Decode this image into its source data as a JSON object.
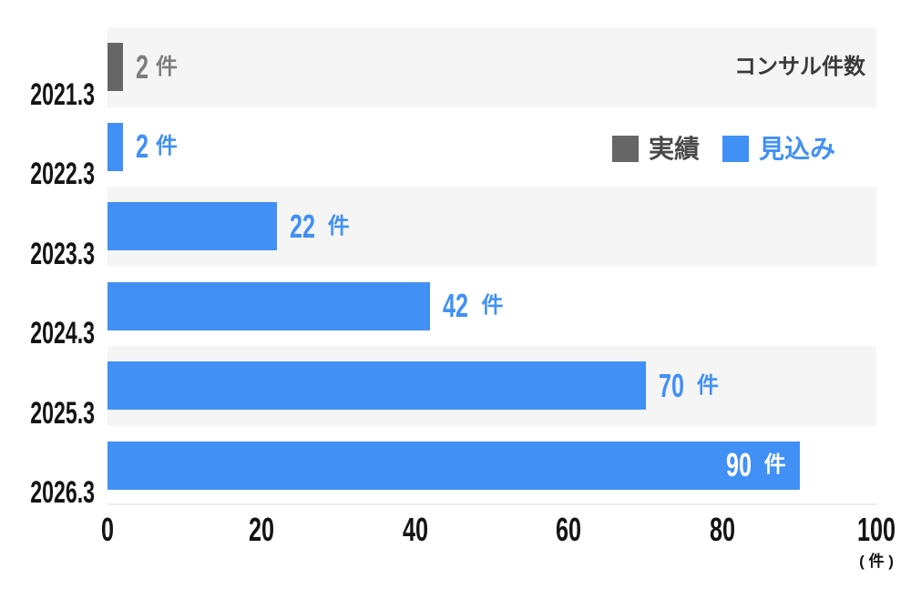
{
  "chart_data": {
    "type": "bar",
    "orientation": "horizontal",
    "title": "コンサル件数",
    "categories": [
      "2021.3",
      "2022.3",
      "2023.3",
      "2024.3",
      "2025.3",
      "2026.3"
    ],
    "rows": [
      {
        "category": "2021.3",
        "value": 2,
        "value_text": "2",
        "unit": "件",
        "series": "actual",
        "label_inside": false
      },
      {
        "category": "2022.3",
        "value": 2,
        "value_text": "2",
        "unit": "件",
        "series": "forecast",
        "label_inside": false
      },
      {
        "category": "2023.3",
        "value": 22,
        "value_text": "22",
        "unit": "件",
        "series": "forecast",
        "label_inside": false
      },
      {
        "category": "2024.3",
        "value": 42,
        "value_text": "42",
        "unit": "件",
        "series": "forecast",
        "label_inside": false
      },
      {
        "category": "2025.3",
        "value": 70,
        "value_text": "70",
        "unit": "件",
        "series": "forecast",
        "label_inside": false
      },
      {
        "category": "2026.3",
        "value": 90,
        "value_text": "90",
        "unit": "件",
        "series": "forecast",
        "label_inside": true
      }
    ],
    "series": [
      {
        "name": "実績",
        "key": "actual",
        "values": [
          2,
          null,
          null,
          null,
          null,
          null
        ]
      },
      {
        "name": "見込み",
        "key": "forecast",
        "values": [
          null,
          2,
          22,
          42,
          70,
          90
        ]
      }
    ],
    "legend": [
      {
        "label": "実績",
        "series": "actual"
      },
      {
        "label": "見込み",
        "series": "forecast"
      }
    ],
    "xlim": [
      0,
      100
    ],
    "xmax": 100,
    "x_ticks": [
      "0",
      "20",
      "40",
      "60",
      "80",
      "100"
    ],
    "x_axis_unit": "( 件 )",
    "grid": "row-stripes",
    "legend_position": "top-right",
    "colors": {
      "actual": "#666666",
      "forecast": "#4190f5",
      "actual_label": "#7e7e7e",
      "forecast_label": "#4190f5",
      "inside_label": "#ffffff",
      "actual_legend_text": "#4a4a4a",
      "forecast_legend_text": "#4190f5",
      "title_text": "#3a3a3a",
      "axis_text": "#141414",
      "row_stripe": "#f5f5f6"
    }
  }
}
